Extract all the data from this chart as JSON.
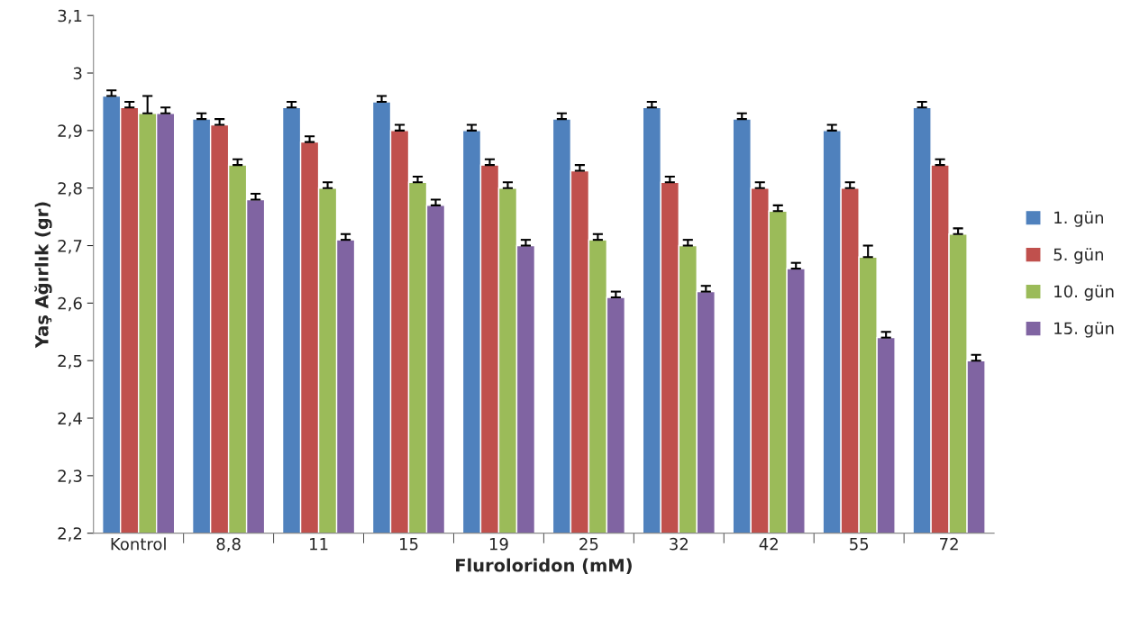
{
  "chart_data": {
    "type": "bar",
    "xlabel": "Fluroloridon (mM)",
    "ylabel": "Yaş Ağırlık (gr)",
    "categories": [
      "Kontrol",
      "8,8",
      "11",
      "15",
      "19",
      "25",
      "32",
      "42",
      "55",
      "72"
    ],
    "series": [
      {
        "name": "1. gün",
        "color": "#4f81bd",
        "values": [
          2.96,
          2.92,
          2.94,
          2.95,
          2.9,
          2.92,
          2.94,
          2.92,
          2.9,
          2.94
        ],
        "errors": [
          [
            2.96,
            2.97
          ],
          [
            2.92,
            2.93
          ],
          [
            2.94,
            2.95
          ],
          [
            2.95,
            2.96
          ],
          [
            2.9,
            2.91
          ],
          [
            2.92,
            2.93
          ],
          [
            2.94,
            2.95
          ],
          [
            2.92,
            2.93
          ],
          [
            2.9,
            2.91
          ],
          [
            2.94,
            2.95
          ]
        ]
      },
      {
        "name": "5. gün",
        "color": "#c0504d",
        "values": [
          2.94,
          2.91,
          2.88,
          2.9,
          2.84,
          2.83,
          2.81,
          2.8,
          2.8,
          2.84
        ],
        "errors": [
          [
            2.94,
            2.95
          ],
          [
            2.91,
            2.92
          ],
          [
            2.88,
            2.89
          ],
          [
            2.9,
            2.91
          ],
          [
            2.84,
            2.85
          ],
          [
            2.83,
            2.84
          ],
          [
            2.81,
            2.82
          ],
          [
            2.8,
            2.81
          ],
          [
            2.8,
            2.81
          ],
          [
            2.84,
            2.85
          ]
        ]
      },
      {
        "name": "10. gün",
        "color": "#9bbb59",
        "values": [
          2.93,
          2.84,
          2.8,
          2.81,
          2.8,
          2.71,
          2.7,
          2.76,
          2.68,
          2.72
        ],
        "errors": [
          [
            2.93,
            2.96
          ],
          [
            2.84,
            2.85
          ],
          [
            2.8,
            2.81
          ],
          [
            2.81,
            2.82
          ],
          [
            2.8,
            2.81
          ],
          [
            2.71,
            2.72
          ],
          [
            2.7,
            2.71
          ],
          [
            2.76,
            2.77
          ],
          [
            2.68,
            2.7
          ],
          [
            2.72,
            2.73
          ]
        ]
      },
      {
        "name": "15. gün",
        "color": "#8064a2",
        "values": [
          2.93,
          2.78,
          2.71,
          2.77,
          2.7,
          2.61,
          2.62,
          2.66,
          2.54,
          2.5
        ],
        "errors": [
          [
            2.93,
            2.94
          ],
          [
            2.78,
            2.79
          ],
          [
            2.71,
            2.72
          ],
          [
            2.77,
            2.78
          ],
          [
            2.7,
            2.71
          ],
          [
            2.61,
            2.62
          ],
          [
            2.62,
            2.63
          ],
          [
            2.66,
            2.67
          ],
          [
            2.54,
            2.55
          ],
          [
            2.5,
            2.51
          ]
        ]
      }
    ],
    "ylim": [
      2.2,
      3.1
    ],
    "yticks": [
      {
        "value": 2.2,
        "label": "2,2"
      },
      {
        "value": 2.3,
        "label": "2,3"
      },
      {
        "value": 2.4,
        "label": "2,4"
      },
      {
        "value": 2.5,
        "label": "2,5"
      },
      {
        "value": 2.6,
        "label": "2,6"
      },
      {
        "value": 2.7,
        "label": "2,7"
      },
      {
        "value": 2.8,
        "label": "2,8"
      },
      {
        "value": 2.9,
        "label": "2,9"
      },
      3,
      {
        "value": 3.1,
        "label": "3,1"
      }
    ],
    "grid": false,
    "legend": "right"
  }
}
